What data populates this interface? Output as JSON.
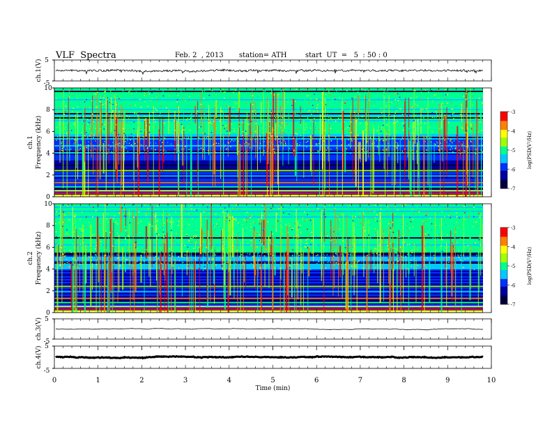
{
  "header": {
    "title": "VLF  Spectra",
    "date": "Feb. 2  , 2013",
    "station": "station= ATH",
    "start": "start  UT  =   5  : 50 : 0"
  },
  "chart_data": [
    {
      "id": "ch1-waveform",
      "type": "line",
      "ylabel": "ch.1(V)",
      "ylim": [
        -5,
        5
      ],
      "y_ticks": [
        "5",
        "-5"
      ],
      "x_range_min": [
        0,
        9.8
      ],
      "baseline_v": 0,
      "description_values": {
        "typical_amplitude_v": 0.6,
        "spike_min_v": -1.8
      }
    },
    {
      "id": "ch1-spectrogram",
      "type": "heatmap",
      "ylabel": "ch.1",
      "ylabel2": "Frequency  (kHz)",
      "ylim": [
        0,
        10
      ],
      "y_ticks": [
        "0",
        "2",
        "4",
        "6",
        "8",
        "10"
      ],
      "colorbar": {
        "label": "log(PSD(V²/Hz)",
        "range": [
          -7,
          -3
        ],
        "ticks": [
          "-3",
          "-4",
          "-5",
          "-6",
          "-7"
        ]
      }
    },
    {
      "id": "ch2-spectrogram",
      "type": "heatmap",
      "ylabel": "ch.2",
      "ylabel2": "Frequency  (kHz)",
      "ylim": [
        0,
        10
      ],
      "y_ticks": [
        "0",
        "2",
        "4",
        "6",
        "8",
        "10"
      ],
      "colorbar": {
        "label": "log(PSD(V²/Hz)",
        "range": [
          -7,
          -3
        ],
        "ticks": [
          "-3",
          "-4",
          "-5",
          "-6",
          "-7"
        ]
      }
    },
    {
      "id": "ch3-waveform",
      "type": "line",
      "ylabel": "ch.3(V)",
      "ylim": [
        -5,
        5
      ],
      "y_ticks": [
        "5",
        "-5"
      ],
      "baseline_v": 0
    },
    {
      "id": "ch4-waveform",
      "type": "line",
      "ylabel": "ch.4(V)",
      "ylim": [
        -5,
        5
      ],
      "y_ticks": [
        "5",
        "-5"
      ],
      "baseline_v": 0
    }
  ],
  "x_axis": {
    "label": "Time  (min)",
    "range": [
      0,
      10
    ],
    "ticks": [
      "0",
      "1",
      "2",
      "3",
      "4",
      "5",
      "6",
      "7",
      "8",
      "9",
      "10"
    ]
  },
  "colors": {
    "scale": [
      "#000040",
      "#0000a0",
      "#0030ff",
      "#00c8ff",
      "#00ff90",
      "#a0ff00",
      "#ffff00",
      "#ff8000",
      "#ff0000",
      "#ffffff"
    ]
  }
}
